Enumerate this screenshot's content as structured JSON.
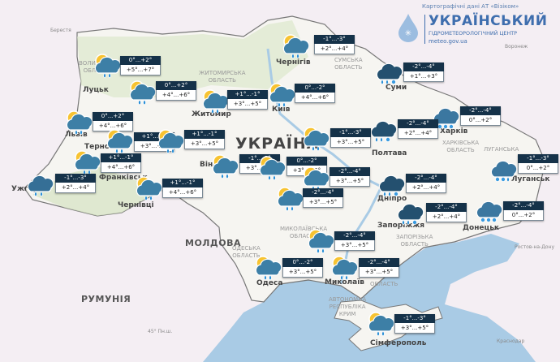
{
  "header": {
    "credit": "Картографічні дані АТ «Візіком»",
    "title": "УКРАЇНСЬКИЙ",
    "subtitle": "ГІДРОМЕТЕОРОЛОГІЧНИЙ ЦЕНТР",
    "url": "meteo.gov.ua"
  },
  "colors": {
    "night_box": "#153249",
    "sea": "#a9cbe5",
    "ukraine_land": "#f6f5f1",
    "foreign_land": "#f4eef3",
    "brand": "#3e6eae"
  },
  "places": [
    {
      "text": "Берестя",
      "kind": "small"
    },
    {
      "text": "Воронеж",
      "kind": "small"
    },
    {
      "text": "Луцьк",
      "kind": "city"
    },
    {
      "text": "Житомир",
      "kind": "city"
    },
    {
      "text": "Київ",
      "kind": "city"
    },
    {
      "text": "Чернігів",
      "kind": "city"
    },
    {
      "text": "Суми",
      "kind": "city"
    },
    {
      "text": "Полтава",
      "kind": "city"
    },
    {
      "text": "Харків",
      "kind": "city"
    },
    {
      "text": "Львів",
      "kind": "city"
    },
    {
      "text": "Тернопіль",
      "kind": "city"
    },
    {
      "text": "Франківськ",
      "kind": "city"
    },
    {
      "text": "Ужгород",
      "kind": "city"
    },
    {
      "text": "Чернівці",
      "kind": "city"
    },
    {
      "text": "Вінниця",
      "kind": "city"
    },
    {
      "text": "УКРАЇНА",
      "kind": "big"
    },
    {
      "text": "Дніпро",
      "kind": "city"
    },
    {
      "text": "Запоріжжя",
      "kind": "city"
    },
    {
      "text": "Луганськ",
      "kind": "city"
    },
    {
      "text": "Донецьк",
      "kind": "city"
    },
    {
      "text": "МОЛДОВА",
      "kind": "country"
    },
    {
      "text": "РУМУНІЯ",
      "kind": "country"
    },
    {
      "text": "Миколаїв",
      "kind": "city"
    },
    {
      "text": "Одеса",
      "kind": "city"
    },
    {
      "text": "Сімферополь",
      "kind": "city"
    },
    {
      "text": "Краснодар",
      "kind": "small"
    },
    {
      "text": "Ростов-на-Дону",
      "kind": "small"
    },
    {
      "text": "СУМСЬКА\nОБЛАСТЬ",
      "kind": "region"
    },
    {
      "text": "ХАРКІВСЬКА\nОБЛАСТЬ",
      "kind": "region"
    },
    {
      "text": "ЗАПОРІЗЬКА\nОБЛАСТЬ",
      "kind": "region"
    },
    {
      "text": "АВТОНОМНА\nРЕСПУБЛІКА\nКРИМ",
      "kind": "region"
    },
    {
      "text": "МИКОЛАЇВСЬКА\nОБЛАСТЬ",
      "kind": "region"
    },
    {
      "text": "ОДЕСЬКА\nОБЛАСТЬ",
      "kind": "region"
    },
    {
      "text": "ЛУГАНСЬКА",
      "kind": "region"
    },
    {
      "text": "ВОЛИНСЬКА\nОБЛАСТЬ",
      "kind": "region"
    },
    {
      "text": "ЖИТОМИРСЬКА\nОБЛАСТЬ",
      "kind": "region"
    },
    {
      "text": "ОБЛАСТЬ",
      "kind": "region"
    },
    {
      "text": "45° Пн.ш.",
      "kind": "small"
    }
  ],
  "forecasts": [
    {
      "icon": "sun-cloud-rain-icon",
      "night": "0°...+2°",
      "day": "+5°...+7°"
    },
    {
      "icon": "sun-cloud-rain-icon",
      "night": "0°...+2°",
      "day": "+4°...+6°"
    },
    {
      "icon": "sun-cloud-rain-icon",
      "night": "+1°...-1°",
      "day": "+3°...+5°"
    },
    {
      "icon": "sun-cloud-rain-icon",
      "night": "0°...-2°",
      "day": "+4°...+6°"
    },
    {
      "icon": "sun-cloud-rain-icon",
      "night": "-1°...-3°",
      "day": "+2°...+4°"
    },
    {
      "icon": "cloud-rain-snow-icon",
      "night": "-2°...-4°",
      "day": "+1°...+3°"
    },
    {
      "icon": "cloud-snow-icon",
      "night": "-2°...-4°",
      "day": "0°...+2°"
    },
    {
      "icon": "cloud-rain-snow-icon",
      "night": "-2°...-4°",
      "day": "+2°...+4°"
    },
    {
      "icon": "sun-cloud-rain-icon",
      "night": "-1°...-3°",
      "day": "+3°...+5°"
    },
    {
      "icon": "sun-cloud-rain-icon",
      "night": "0°...+2°",
      "day": "+4°...+6°"
    },
    {
      "icon": "sun-cloud-rain-icon",
      "night": "+1°...-1°",
      "day": "+3°...+5°"
    },
    {
      "icon": "sun-cloud-rain-icon",
      "night": "+1°...-1°",
      "day": "+3°...+5°"
    },
    {
      "icon": "sun-cloud-rain-icon",
      "night": "+1°...-1°",
      "day": "+4°...+6°"
    },
    {
      "icon": "cloud-rain-icon",
      "night": "-1°...-3°",
      "day": "+2°...+4°"
    },
    {
      "icon": "sun-cloud-rain-icon",
      "night": "+1°...-1°",
      "day": "+4°...+6°"
    },
    {
      "icon": "sun-cloud-rain-icon",
      "night": "-1°...-3°",
      "day": "+3°...+5°"
    },
    {
      "icon": "sun-cloud-rain-icon",
      "night": "0°...-2°",
      "day": "+3°...+5°"
    },
    {
      "icon": "sun-cloud-rain-icon",
      "night": "-2°...-4°",
      "day": "+3°...+5°"
    },
    {
      "icon": "sun-cloud-rain-icon",
      "night": "-2°...-4°",
      "day": "+3°...+5°"
    },
    {
      "icon": "cloud-rain-snow-icon",
      "night": "-2°...-4°",
      "day": "+2°...+4°"
    },
    {
      "icon": "cloud-rain-snow-icon",
      "night": "-2°...-4°",
      "day": "+2°...+4°"
    },
    {
      "icon": "cloud-snow-rain-icon",
      "night": "-1°...-3°",
      "day": "0°...+2°"
    },
    {
      "icon": "cloud-snow-icon",
      "night": "-2°...-4°",
      "day": "0°...+2°"
    },
    {
      "icon": "sun-cloud-rain-icon",
      "night": "-2°...-4°",
      "day": "+3°...+5°"
    },
    {
      "icon": "sun-cloud-rain-icon",
      "night": "0°...-2°",
      "day": "+3°...+5°"
    },
    {
      "icon": "sun-cloud-rain-icon",
      "night": "-2°...-4°",
      "day": "+3°...+5°"
    },
    {
      "icon": "sun-cloud-rain-icon",
      "night": "-1°...-3°",
      "day": "+3°...+5°"
    }
  ]
}
